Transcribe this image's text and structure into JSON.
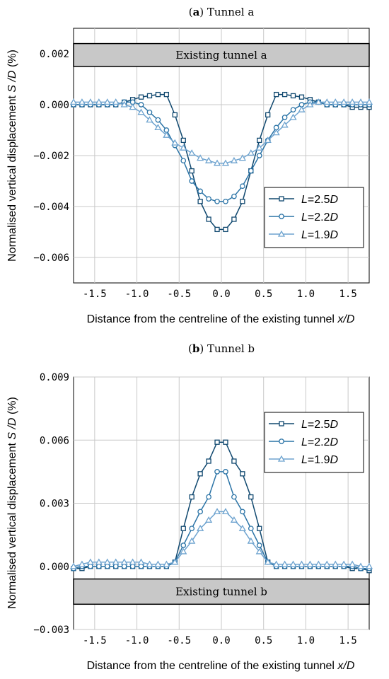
{
  "colors": {
    "L25": "#10486f",
    "L22": "#2a73a6",
    "L19": "#6ea3cf",
    "band": "#c8c8c8",
    "grid": "#c8c8c8"
  },
  "chart_data": [
    {
      "type": "line",
      "title_bold": "a",
      "title_rest": "Tunnel a",
      "xlabel_main": "Distance from the centreline of the existing tunnel ",
      "xlabel_var": "x/D",
      "ylabel_main": "Normalised vertical displacement ",
      "ylabel_var": "S /D",
      "ylabel_unit": " (%)",
      "xlim": [
        -1.75,
        1.75
      ],
      "ylim": [
        -0.007,
        0.003
      ],
      "xticks": [
        -1.5,
        -1.0,
        -0.5,
        0.0,
        0.5,
        1.0,
        1.5
      ],
      "xtick_labels": [
        "-1.5",
        "-1.0",
        "-0.5",
        "0.0",
        "0.5",
        "1.0",
        "1.5"
      ],
      "yticks": [
        0.002,
        0.0,
        -0.002,
        -0.004,
        -0.006
      ],
      "ytick_labels": [
        "0.002",
        "0.000",
        "−0.002",
        "−0.004",
        "−0.006"
      ],
      "grid": true,
      "legend_position": "lower-right",
      "band": {
        "label": "Existing tunnel a",
        "y_top": 0.0024,
        "y_bottom": 0.0015
      },
      "series": [
        {
          "name": "L=2.5D",
          "italic": "L",
          "num": "=2.5",
          "italic2": "D",
          "marker": "square",
          "color_key": "L25",
          "x": [
            -1.75,
            -1.65,
            -1.55,
            -1.45,
            -1.35,
            -1.25,
            -1.15,
            -1.05,
            -0.95,
            -0.85,
            -0.75,
            -0.65,
            -0.55,
            -0.45,
            -0.35,
            -0.25,
            -0.15,
            -0.05,
            0.05,
            0.15,
            0.25,
            0.35,
            0.45,
            0.55,
            0.65,
            0.75,
            0.85,
            0.95,
            1.05,
            1.15,
            1.25,
            1.35,
            1.45,
            1.55,
            1.65,
            1.75
          ],
          "y": [
            0.0,
            0.0,
            0.0,
            0.0,
            0.0,
            0.0,
            0.0001,
            0.0002,
            0.0003,
            0.00035,
            0.0004,
            0.0004,
            -0.0004,
            -0.0014,
            -0.0026,
            -0.0038,
            -0.0045,
            -0.0049,
            -0.0049,
            -0.0045,
            -0.0038,
            -0.0026,
            -0.0014,
            -0.0004,
            0.0004,
            0.0004,
            0.00035,
            0.0003,
            0.0002,
            0.0001,
            0.0,
            0.0,
            0.0,
            -0.0001,
            -0.0001,
            -0.0001
          ]
        },
        {
          "name": "L=2.2D",
          "italic": "L",
          "num": "=2.2",
          "italic2": "D",
          "marker": "circle",
          "color_key": "L22",
          "x": [
            -1.75,
            -1.65,
            -1.55,
            -1.45,
            -1.35,
            -1.25,
            -1.15,
            -1.05,
            -0.95,
            -0.85,
            -0.75,
            -0.65,
            -0.55,
            -0.45,
            -0.35,
            -0.25,
            -0.15,
            -0.05,
            0.05,
            0.15,
            0.25,
            0.35,
            0.45,
            0.55,
            0.65,
            0.75,
            0.85,
            0.95,
            1.05,
            1.15,
            1.25,
            1.35,
            1.45,
            1.55,
            1.65,
            1.75
          ],
          "y": [
            0.0,
            0.0,
            0.0,
            0.0,
            0.0,
            0.0,
            0.0001,
            0.0001,
            0.0,
            -0.0003,
            -0.0006,
            -0.001,
            -0.0016,
            -0.0022,
            -0.003,
            -0.0034,
            -0.0037,
            -0.0038,
            -0.0038,
            -0.0036,
            -0.0032,
            -0.0026,
            -0.002,
            -0.0014,
            -0.0009,
            -0.0005,
            -0.0002,
            0.0,
            0.0001,
            0.0001,
            0.0,
            0.0,
            0.0,
            0.0,
            0.0,
            0.0
          ]
        },
        {
          "name": "L=1.9D",
          "italic": "L",
          "num": "=1.9",
          "italic2": "D",
          "marker": "triangle",
          "color_key": "L19",
          "x": [
            -1.75,
            -1.65,
            -1.55,
            -1.45,
            -1.35,
            -1.25,
            -1.15,
            -1.05,
            -0.95,
            -0.85,
            -0.75,
            -0.65,
            -0.55,
            -0.45,
            -0.35,
            -0.25,
            -0.15,
            -0.05,
            0.05,
            0.15,
            0.25,
            0.35,
            0.45,
            0.55,
            0.65,
            0.75,
            0.85,
            0.95,
            1.05,
            1.15,
            1.25,
            1.35,
            1.45,
            1.55,
            1.65,
            1.75
          ],
          "y": [
            0.0001,
            0.0001,
            0.0001,
            0.0001,
            0.0001,
            0.0001,
            0.0,
            -0.0001,
            -0.0003,
            -0.0006,
            -0.0009,
            -0.0012,
            -0.0015,
            -0.0017,
            -0.0019,
            -0.0021,
            -0.0022,
            -0.0023,
            -0.0023,
            -0.0022,
            -0.0021,
            -0.0019,
            -0.0017,
            -0.0014,
            -0.0011,
            -0.0008,
            -0.0005,
            -0.0002,
            0.0,
            0.0001,
            0.0001,
            0.0001,
            0.0001,
            0.0001,
            0.0001,
            0.0001
          ]
        }
      ]
    },
    {
      "type": "line",
      "title_bold": "b",
      "title_rest": "Tunnel b",
      "xlabel_main": "Distance from the centreline of the existing tunnel ",
      "xlabel_var": "x/D",
      "ylabel_main": "Normalised vertical displacement ",
      "ylabel_var": "S /D",
      "ylabel_unit": " (%)",
      "xlim": [
        -1.75,
        1.75
      ],
      "ylim": [
        -0.003,
        0.009
      ],
      "xticks": [
        -1.5,
        -1.0,
        -0.5,
        0.0,
        0.5,
        1.0,
        1.5
      ],
      "xtick_labels": [
        "-1.5",
        "-1.0",
        "-0.5",
        "0.0",
        "0.5",
        "1.0",
        "1.5"
      ],
      "yticks": [
        0.009,
        0.006,
        0.003,
        0.0,
        -0.003
      ],
      "ytick_labels": [
        "0.009",
        "0.006",
        "0.003",
        "0.000",
        "−0.003"
      ],
      "grid": true,
      "legend_position": "upper-right",
      "band": {
        "label": "Existing tunnel b",
        "y_top": -0.0006,
        "y_bottom": -0.0018
      },
      "series": [
        {
          "name": "L=2.5D",
          "italic": "L",
          "num": "=2.5",
          "italic2": "D",
          "marker": "square",
          "color_key": "L25",
          "x": [
            -1.75,
            -1.65,
            -1.55,
            -1.45,
            -1.35,
            -1.25,
            -1.15,
            -1.05,
            -0.95,
            -0.85,
            -0.75,
            -0.65,
            -0.55,
            -0.45,
            -0.35,
            -0.25,
            -0.15,
            -0.05,
            0.05,
            0.15,
            0.25,
            0.35,
            0.45,
            0.55,
            0.65,
            0.75,
            0.85,
            0.95,
            1.05,
            1.15,
            1.25,
            1.35,
            1.45,
            1.55,
            1.65,
            1.75
          ],
          "y": [
            -0.0001,
            -0.0001,
            0.0,
            0.0,
            0.0,
            0.0,
            0.0,
            0.0,
            0.0,
            0.0,
            0.0,
            0.0,
            0.0002,
            0.0018,
            0.0033,
            0.0044,
            0.005,
            0.0059,
            0.0059,
            0.005,
            0.0044,
            0.0033,
            0.0018,
            0.0002,
            0.0,
            0.0,
            0.0,
            0.0,
            0.0,
            0.0,
            0.0,
            0.0,
            0.0,
            -0.0001,
            -0.0001,
            -0.0002
          ]
        },
        {
          "name": "L=2.2D",
          "italic": "L",
          "num": "=2.2",
          "italic2": "D",
          "marker": "circle",
          "color_key": "L22",
          "x": [
            -1.75,
            -1.65,
            -1.55,
            -1.45,
            -1.35,
            -1.25,
            -1.15,
            -1.05,
            -0.95,
            -0.85,
            -0.75,
            -0.65,
            -0.55,
            -0.45,
            -0.35,
            -0.25,
            -0.15,
            -0.05,
            0.05,
            0.15,
            0.25,
            0.35,
            0.45,
            0.55,
            0.65,
            0.75,
            0.85,
            0.95,
            1.05,
            1.15,
            1.25,
            1.35,
            1.45,
            1.55,
            1.65,
            1.75
          ],
          "y": [
            -0.0001,
            0.0,
            0.0,
            0.0,
            0.0,
            0.0,
            0.0,
            0.0,
            0.0,
            0.0,
            0.0,
            0.0,
            0.0002,
            0.001,
            0.0018,
            0.0026,
            0.0033,
            0.0045,
            0.0045,
            0.0033,
            0.0026,
            0.0018,
            0.001,
            0.0002,
            0.0,
            0.0,
            0.0,
            0.0,
            0.0,
            0.0,
            0.0,
            0.0,
            0.0,
            0.0,
            -0.0001,
            -0.0001
          ]
        },
        {
          "name": "L=1.9D",
          "italic": "L",
          "num": "=1.9",
          "italic2": "D",
          "marker": "triangle",
          "color_key": "L19",
          "x": [
            -1.75,
            -1.65,
            -1.55,
            -1.45,
            -1.35,
            -1.25,
            -1.15,
            -1.05,
            -0.95,
            -0.85,
            -0.75,
            -0.65,
            -0.55,
            -0.45,
            -0.35,
            -0.25,
            -0.15,
            -0.05,
            0.05,
            0.15,
            0.25,
            0.35,
            0.45,
            0.55,
            0.65,
            0.75,
            0.85,
            0.95,
            1.05,
            1.15,
            1.25,
            1.35,
            1.45,
            1.55,
            1.65,
            1.75
          ],
          "y": [
            0.0,
            0.0001,
            0.0002,
            0.0002,
            0.0002,
            0.0002,
            0.0002,
            0.0002,
            0.0002,
            0.0001,
            0.0001,
            0.0001,
            0.0002,
            0.0007,
            0.0012,
            0.0018,
            0.0022,
            0.0026,
            0.0026,
            0.0022,
            0.0018,
            0.0012,
            0.0007,
            0.0002,
            0.0001,
            0.0001,
            0.0001,
            0.0001,
            0.0001,
            0.0001,
            0.0001,
            0.0001,
            0.0001,
            0.0001,
            0.0,
            0.0
          ]
        }
      ]
    }
  ]
}
